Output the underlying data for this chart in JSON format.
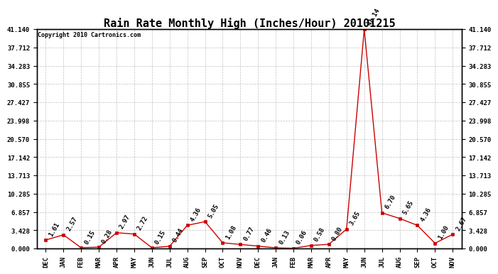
{
  "title": "Rain Rate Monthly High (Inches/Hour) 20101215",
  "copyright": "Copyright 2010 Cartronics.com",
  "categories": [
    "DEC",
    "JAN",
    "FEB",
    "MAR",
    "APR",
    "MAY",
    "JUN",
    "JUL",
    "AUG",
    "SEP",
    "OCT",
    "NOV",
    "DEC",
    "JAN",
    "FEB",
    "MAR",
    "APR",
    "MAY",
    "JUN",
    "JUL",
    "AUG",
    "SEP",
    "OCT",
    "NOV"
  ],
  "values": [
    1.61,
    2.57,
    0.15,
    0.28,
    2.97,
    2.72,
    0.15,
    0.44,
    4.36,
    5.05,
    1.08,
    0.77,
    0.46,
    0.13,
    0.06,
    0.58,
    0.8,
    3.65,
    41.14,
    6.7,
    5.65,
    4.36,
    1.0,
    2.67
  ],
  "line_color": "#cc0000",
  "marker_color": "#cc0000",
  "bg_color": "#ffffff",
  "grid_color": "#bbbbbb",
  "title_fontsize": 11,
  "tick_fontsize": 6.5,
  "annotation_fontsize": 6.5,
  "copyright_fontsize": 6,
  "ylim": [
    0.0,
    41.14
  ],
  "yticks": [
    0.0,
    3.428,
    6.857,
    10.285,
    13.713,
    17.142,
    20.57,
    23.998,
    27.427,
    30.855,
    34.283,
    37.712,
    41.14
  ]
}
